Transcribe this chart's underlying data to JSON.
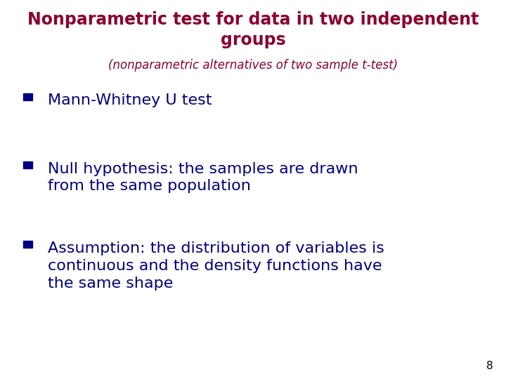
{
  "title_line1": "Nonparametric test for data in two independent",
  "title_line2": "groups",
  "subtitle": "(nonparametric alternatives of two sample t-test)",
  "title_color": "#8B0030",
  "subtitle_color": "#8B0030",
  "bullet_color": "#000080",
  "bullet_square_color": "#000080",
  "background_color": "#ffffff",
  "page_number": "8",
  "bullets": [
    {
      "lines": [
        "Mann-Whitney U test"
      ]
    },
    {
      "lines": [
        "Null hypothesis: the samples are drawn",
        "from the same population"
      ]
    },
    {
      "lines": [
        "Assumption: the distribution of variables is",
        "continuous and the density functions have",
        "the same shape"
      ]
    }
  ],
  "title_fontsize": 17,
  "subtitle_fontsize": 12,
  "bullet_fontsize": 16,
  "page_num_fontsize": 11
}
